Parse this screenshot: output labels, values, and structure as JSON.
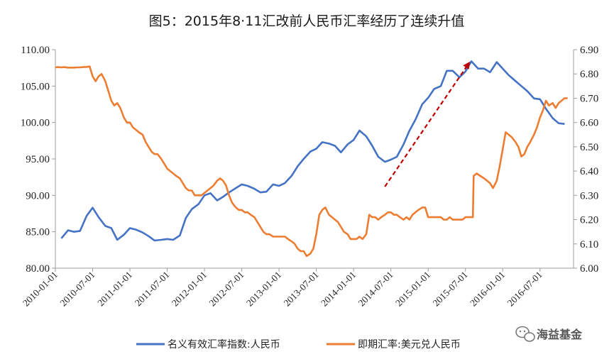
{
  "chart_data": {
    "type": "line",
    "title": "图5：2015年8·11汇改前人民币汇率经历了连续升值",
    "x_tick_labels": [
      "2010-01-01",
      "2010-07-01",
      "2011-01-01",
      "2011-07-01",
      "2012-01-01",
      "2012-07-01",
      "2013-01-01",
      "2013-07-01",
      "2014-01-01",
      "2014-07-01",
      "2015-01-01",
      "2015-07-01",
      "2016-01-01",
      "2016-07-01"
    ],
    "x_range": [
      2010.0,
      2016.95
    ],
    "y_left": {
      "ticks": [
        "80.00",
        "85.00",
        "90.00",
        "95.00",
        "100.00",
        "105.00",
        "110.00"
      ],
      "range": [
        80,
        110
      ]
    },
    "y_right": {
      "ticks": [
        "6.00",
        "6.10",
        "6.20",
        "6.30",
        "6.40",
        "6.50",
        "6.60",
        "6.70",
        "6.80",
        "6.90"
      ],
      "range": [
        6.0,
        6.9
      ]
    },
    "series": [
      {
        "name": "名义有效汇率指数:人民币",
        "color": "#4472C4",
        "axis": "left",
        "x": [
          2010.08,
          2010.17,
          2010.25,
          2010.33,
          2010.42,
          2010.5,
          2010.58,
          2010.67,
          2010.75,
          2010.83,
          2010.92,
          2011.0,
          2011.08,
          2011.17,
          2011.25,
          2011.33,
          2011.42,
          2011.5,
          2011.58,
          2011.67,
          2011.75,
          2011.83,
          2011.92,
          2012.0,
          2012.08,
          2012.17,
          2012.25,
          2012.33,
          2012.42,
          2012.5,
          2012.58,
          2012.67,
          2012.75,
          2012.83,
          2012.92,
          2013.0,
          2013.08,
          2013.17,
          2013.25,
          2013.33,
          2013.42,
          2013.5,
          2013.58,
          2013.67,
          2013.75,
          2013.83,
          2013.92,
          2014.0,
          2014.08,
          2014.17,
          2014.25,
          2014.33,
          2014.42,
          2014.5,
          2014.58,
          2014.67,
          2014.75,
          2014.83,
          2014.92,
          2015.0,
          2015.08,
          2015.17,
          2015.25,
          2015.33,
          2015.42,
          2015.5,
          2015.58,
          2015.67,
          2015.75,
          2015.83,
          2015.92,
          2016.0,
          2016.08,
          2016.17,
          2016.25,
          2016.33,
          2016.42,
          2016.5,
          2016.58,
          2016.67,
          2016.75,
          2016.83
        ],
        "values": [
          84.1,
          85.2,
          85.0,
          85.1,
          87.2,
          88.3,
          87.0,
          85.8,
          85.5,
          83.9,
          84.6,
          85.5,
          85.3,
          84.9,
          84.4,
          83.8,
          83.9,
          84.0,
          83.9,
          84.5,
          86.9,
          88.1,
          88.8,
          90.0,
          90.3,
          89.3,
          89.8,
          90.4,
          91.0,
          91.5,
          91.3,
          90.9,
          90.4,
          90.5,
          91.5,
          91.3,
          91.7,
          92.7,
          94.0,
          95.0,
          96.0,
          96.4,
          97.3,
          97.1,
          96.8,
          95.9,
          97.0,
          97.6,
          98.9,
          98.1,
          96.8,
          95.3,
          94.6,
          94.9,
          95.3,
          97.0,
          98.9,
          100.4,
          102.5,
          103.4,
          104.6,
          105.0,
          107.1,
          107.1,
          106.2,
          107.0,
          108.4,
          107.4,
          107.4,
          106.9,
          108.3,
          107.4,
          106.5,
          105.7,
          105.0,
          104.3,
          103.3,
          103.2,
          101.9,
          100.6,
          99.9,
          99.8
        ]
      },
      {
        "name": "即期汇率:美元兑人民币",
        "color": "#ED7D31",
        "axis": "right",
        "x": [
          2010.0,
          2010.04,
          2010.08,
          2010.12,
          2010.17,
          2010.21,
          2010.25,
          2010.29,
          2010.33,
          2010.37,
          2010.42,
          2010.46,
          2010.5,
          2010.54,
          2010.58,
          2010.62,
          2010.67,
          2010.71,
          2010.75,
          2010.79,
          2010.83,
          2010.87,
          2010.92,
          2010.96,
          2011.0,
          2011.04,
          2011.08,
          2011.12,
          2011.17,
          2011.21,
          2011.25,
          2011.29,
          2011.33,
          2011.37,
          2011.42,
          2011.46,
          2011.5,
          2011.54,
          2011.58,
          2011.62,
          2011.67,
          2011.71,
          2011.75,
          2011.79,
          2011.83,
          2011.87,
          2011.92,
          2011.96,
          2012.0,
          2012.04,
          2012.08,
          2012.12,
          2012.17,
          2012.21,
          2012.25,
          2012.29,
          2012.33,
          2012.37,
          2012.42,
          2012.46,
          2012.5,
          2012.54,
          2012.58,
          2012.62,
          2012.67,
          2012.71,
          2012.75,
          2012.79,
          2012.83,
          2012.87,
          2012.92,
          2012.96,
          2013.0,
          2013.04,
          2013.08,
          2013.12,
          2013.17,
          2013.21,
          2013.25,
          2013.29,
          2013.33,
          2013.37,
          2013.42,
          2013.46,
          2013.5,
          2013.54,
          2013.58,
          2013.62,
          2013.67,
          2013.71,
          2013.75,
          2013.79,
          2013.83,
          2013.87,
          2013.92,
          2013.96,
          2014.0,
          2014.04,
          2014.08,
          2014.12,
          2014.17,
          2014.21,
          2014.25,
          2014.29,
          2014.33,
          2014.37,
          2014.42,
          2014.46,
          2014.5,
          2014.54,
          2014.58,
          2014.62,
          2014.67,
          2014.71,
          2014.75,
          2014.79,
          2014.83,
          2014.87,
          2014.92,
          2014.96,
          2015.0,
          2015.04,
          2015.08,
          2015.12,
          2015.17,
          2015.21,
          2015.25,
          2015.29,
          2015.33,
          2015.37,
          2015.42,
          2015.46,
          2015.5,
          2015.54,
          2015.58,
          2015.6,
          2015.61,
          2015.65,
          2015.7,
          2015.75,
          2015.79,
          2015.83,
          2015.87,
          2015.92,
          2015.96,
          2016.0,
          2016.04,
          2016.08,
          2016.12,
          2016.17,
          2016.21,
          2016.25,
          2016.29,
          2016.33,
          2016.37,
          2016.42,
          2016.46,
          2016.5,
          2016.54,
          2016.58,
          2016.62,
          2016.67,
          2016.71,
          2016.75,
          2016.79,
          2016.83,
          2016.87
        ],
        "values": [
          6.827,
          6.828,
          6.827,
          6.828,
          6.826,
          6.826,
          6.826,
          6.827,
          6.827,
          6.828,
          6.829,
          6.831,
          6.79,
          6.77,
          6.79,
          6.8,
          6.77,
          6.73,
          6.69,
          6.67,
          6.68,
          6.66,
          6.62,
          6.6,
          6.6,
          6.58,
          6.57,
          6.56,
          6.55,
          6.52,
          6.5,
          6.48,
          6.47,
          6.47,
          6.45,
          6.43,
          6.41,
          6.4,
          6.39,
          6.38,
          6.37,
          6.35,
          6.33,
          6.32,
          6.32,
          6.3,
          6.3,
          6.3,
          6.31,
          6.32,
          6.33,
          6.34,
          6.36,
          6.37,
          6.36,
          6.34,
          6.3,
          6.27,
          6.25,
          6.24,
          6.24,
          6.23,
          6.23,
          6.22,
          6.21,
          6.19,
          6.17,
          6.15,
          6.14,
          6.14,
          6.13,
          6.13,
          6.13,
          6.13,
          6.13,
          6.12,
          6.11,
          6.1,
          6.08,
          6.07,
          6.07,
          6.05,
          6.06,
          6.08,
          6.14,
          6.22,
          6.24,
          6.25,
          6.22,
          6.21,
          6.2,
          6.19,
          6.17,
          6.15,
          6.14,
          6.12,
          6.12,
          6.12,
          6.13,
          6.12,
          6.14,
          6.22,
          6.21,
          6.21,
          6.2,
          6.21,
          6.22,
          6.23,
          6.23,
          6.22,
          6.22,
          6.21,
          6.2,
          6.21,
          6.2,
          6.22,
          6.23,
          6.24,
          6.25,
          6.25,
          6.21,
          6.21,
          6.21,
          6.21,
          6.21,
          6.2,
          6.2,
          6.21,
          6.2,
          6.2,
          6.2,
          6.2,
          6.21,
          6.21,
          6.21,
          6.21,
          6.38,
          6.39,
          6.38,
          6.37,
          6.36,
          6.35,
          6.33,
          6.36,
          6.42,
          6.49,
          6.56,
          6.55,
          6.54,
          6.52,
          6.5,
          6.46,
          6.47,
          6.5,
          6.52,
          6.55,
          6.58,
          6.62,
          6.65,
          6.69,
          6.67,
          6.68,
          6.66,
          6.68,
          6.69,
          6.7,
          6.7
        ]
      }
    ],
    "annotation": {
      "type": "arrow",
      "color": "#C00000",
      "style": "dashed",
      "from": [
        2014.42,
        91.2
      ],
      "to": [
        2015.55,
        108.2
      ]
    },
    "legend_position": "bottom"
  },
  "legend": {
    "item1": "名义有效汇率指数:人民币",
    "item2": "即期汇率:美元兑人民币"
  },
  "watermark": {
    "text": "海益基金"
  }
}
